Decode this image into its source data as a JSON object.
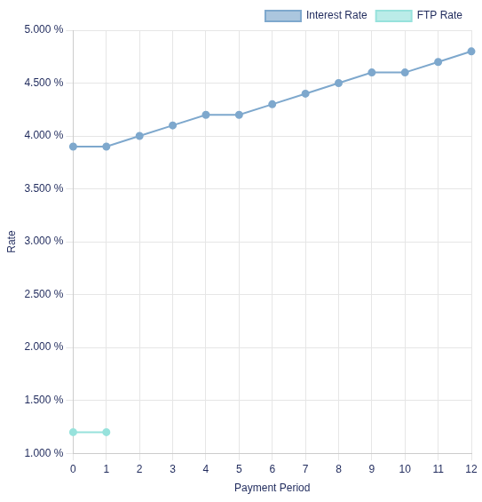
{
  "chart_data": {
    "type": "line",
    "x_label": "Payment Period",
    "y_label": "Rate",
    "categories": [
      "0",
      "1",
      "2",
      "3",
      "4",
      "5",
      "6",
      "7",
      "8",
      "9",
      "10",
      "11",
      "12"
    ],
    "series": [
      {
        "name": "Interest Rate",
        "color": "#7ea8cd",
        "marker": "circle",
        "line_style": "solid",
        "values": [
          3.9,
          3.9,
          4.0,
          4.1,
          4.2,
          4.2,
          4.3,
          4.4,
          4.5,
          4.6,
          4.6,
          4.7,
          4.8
        ]
      },
      {
        "name": "FTP Rate",
        "color": "#97e2dc",
        "marker": "circle",
        "line_style": "solid",
        "values": [
          1.2,
          1.2,
          null,
          null,
          null,
          null,
          null,
          null,
          null,
          null,
          null,
          null,
          null
        ]
      }
    ],
    "ylim": [
      1,
      5
    ],
    "yticks": [
      {
        "value": 1,
        "label": "1.000 %"
      },
      {
        "value": 1.5,
        "label": "1.500 %"
      },
      {
        "value": 2,
        "label": "2.000 %"
      },
      {
        "value": 2.5,
        "label": "2.500 %"
      },
      {
        "value": 3,
        "label": "3.000 %"
      },
      {
        "value": 3.5,
        "label": "3.500 %"
      },
      {
        "value": 4,
        "label": "4.000 %"
      },
      {
        "value": 4.5,
        "label": "4.500 %"
      },
      {
        "value": 5,
        "label": "5.000 %"
      }
    ],
    "grid": true,
    "legend": "top-right"
  }
}
